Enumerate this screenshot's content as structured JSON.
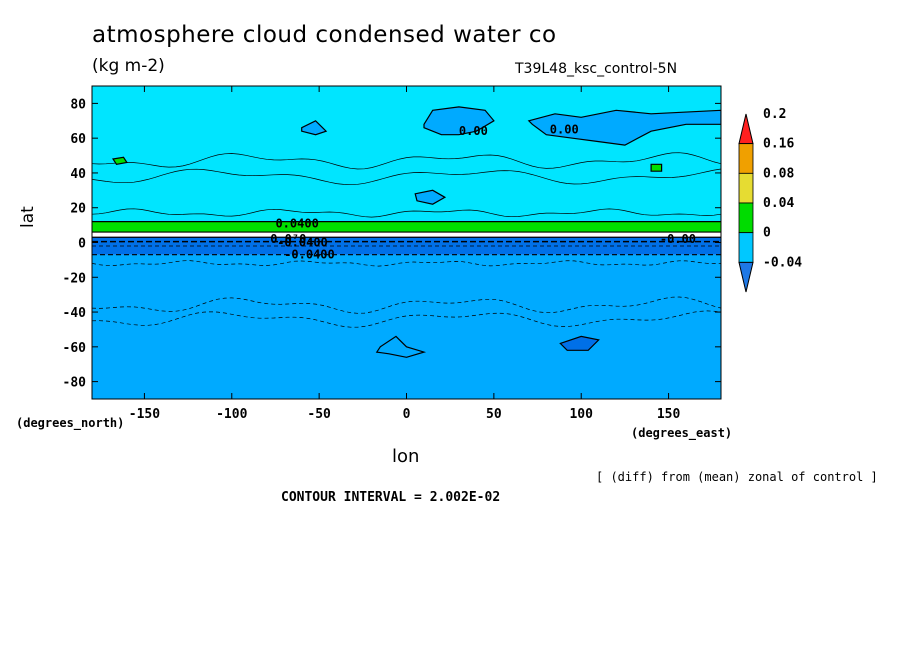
{
  "header": {
    "title": "atmosphere cloud condensed water co",
    "units": "(kg m-2)",
    "run": "T39L48_ksc_control-5N"
  },
  "footer": {
    "note": "[ (diff) from (mean) zonal of control ]",
    "contour_interval": "CONTOUR INTERVAL = 2.002E-02"
  },
  "chart_data": {
    "type": "heatmap",
    "title": "atmosphere cloud condensed water co",
    "xlabel": "lon",
    "ylabel": "lat",
    "x_units": "(degrees_east)",
    "y_units": "(degrees_north)",
    "xlim": [
      -180,
      180
    ],
    "ylim": [
      -90,
      90
    ],
    "x_ticks": [
      -150,
      -100,
      -50,
      0,
      50,
      100,
      150
    ],
    "x_tick_labels": [
      "-150",
      "-100",
      "-50",
      "0",
      "50",
      "100",
      "150"
    ],
    "y_ticks": [
      80,
      60,
      40,
      20,
      0,
      -20,
      -40,
      -60,
      -80
    ],
    "y_tick_labels": [
      "80",
      "60",
      "40",
      "20",
      "0",
      "-20",
      "-40",
      "-60",
      "-80"
    ],
    "colorbar": {
      "levels": [
        -0.04,
        0,
        0.04,
        0.08,
        0.16,
        0.2
      ],
      "labels": [
        "-0.04",
        "0",
        "0.04",
        "0.08",
        "0.16",
        "0.2"
      ],
      "colors": [
        "#1e78e6",
        "#00c8ff",
        "#00dc00",
        "#e6dc32",
        "#f0a000",
        "#ff2020"
      ],
      "extend": "both"
    },
    "colors": {
      "background": "#00e5ff",
      "negative": "#00aaff",
      "strong_negative": "#0070e8",
      "positive": "#00e000"
    },
    "bands": [
      {
        "lat_from": 6,
        "lat_to": 12,
        "value_class": "positive"
      },
      {
        "lat_from": -7,
        "lat_to": 3,
        "value_class": "strong_negative"
      },
      {
        "lat_from": -90,
        "lat_to": -7,
        "value_class": "negative"
      },
      {
        "lat_from": 12,
        "lat_to": 90,
        "value_class": "background"
      }
    ],
    "patches": [
      {
        "lon": [
          10,
          15,
          30,
          45,
          50,
          40,
          30,
          20,
          10
        ],
        "lat": [
          68,
          76,
          78,
          76,
          70,
          64,
          62,
          62,
          66
        ],
        "value_class": "negative"
      },
      {
        "lon": [
          70,
          85,
          100,
          120,
          140,
          180,
          180,
          160,
          140,
          125,
          110,
          95,
          80,
          72
        ],
        "lat": [
          70,
          74,
          72,
          76,
          74,
          76,
          68,
          68,
          64,
          56,
          58,
          60,
          62,
          68
        ],
        "value_class": "negative"
      },
      {
        "lon": [
          -60,
          -52,
          -46,
          -52,
          -60
        ],
        "lat": [
          66,
          70,
          64,
          62,
          64
        ],
        "value_class": "negative"
      },
      {
        "lon": [
          5,
          15,
          22,
          15,
          6
        ],
        "lat": [
          28,
          30,
          26,
          22,
          24
        ],
        "value_class": "negative"
      },
      {
        "lon": [
          -168,
          -162,
          -160,
          -166
        ],
        "lat": [
          48,
          49,
          46,
          45
        ],
        "value_class": "positive"
      },
      {
        "lon": [
          140,
          146,
          146,
          140
        ],
        "lat": [
          45,
          45,
          41,
          41
        ],
        "value_class": "positive"
      },
      {
        "lon": [
          -15,
          -6,
          0,
          10,
          0,
          -10,
          -17
        ],
        "lat": [
          -60,
          -54,
          -60,
          -63,
          -66,
          -64,
          -63
        ],
        "value_class": "negative"
      },
      {
        "lon": [
          88,
          100,
          110,
          104,
          92
        ],
        "lat": [
          -58,
          -54,
          -56,
          -62,
          -62
        ],
        "value_class": "strong_negative"
      }
    ],
    "contour_labels": [
      {
        "text": "0.00",
        "lon": 30,
        "lat": 64
      },
      {
        "text": "0.00",
        "lon": 82,
        "lat": 65
      },
      {
        "text": "0.0400",
        "lon": -75,
        "lat": 11
      },
      {
        "text": "0.0⁷0",
        "lon": -78,
        "lat": 2
      },
      {
        "text": "-0.0400",
        "lon": -74,
        "lat": 0
      },
      {
        "text": "-0.0400",
        "lon": -70,
        "lat": -7
      },
      {
        "text": "-0.00",
        "lon": 145,
        "lat": 2
      }
    ]
  }
}
